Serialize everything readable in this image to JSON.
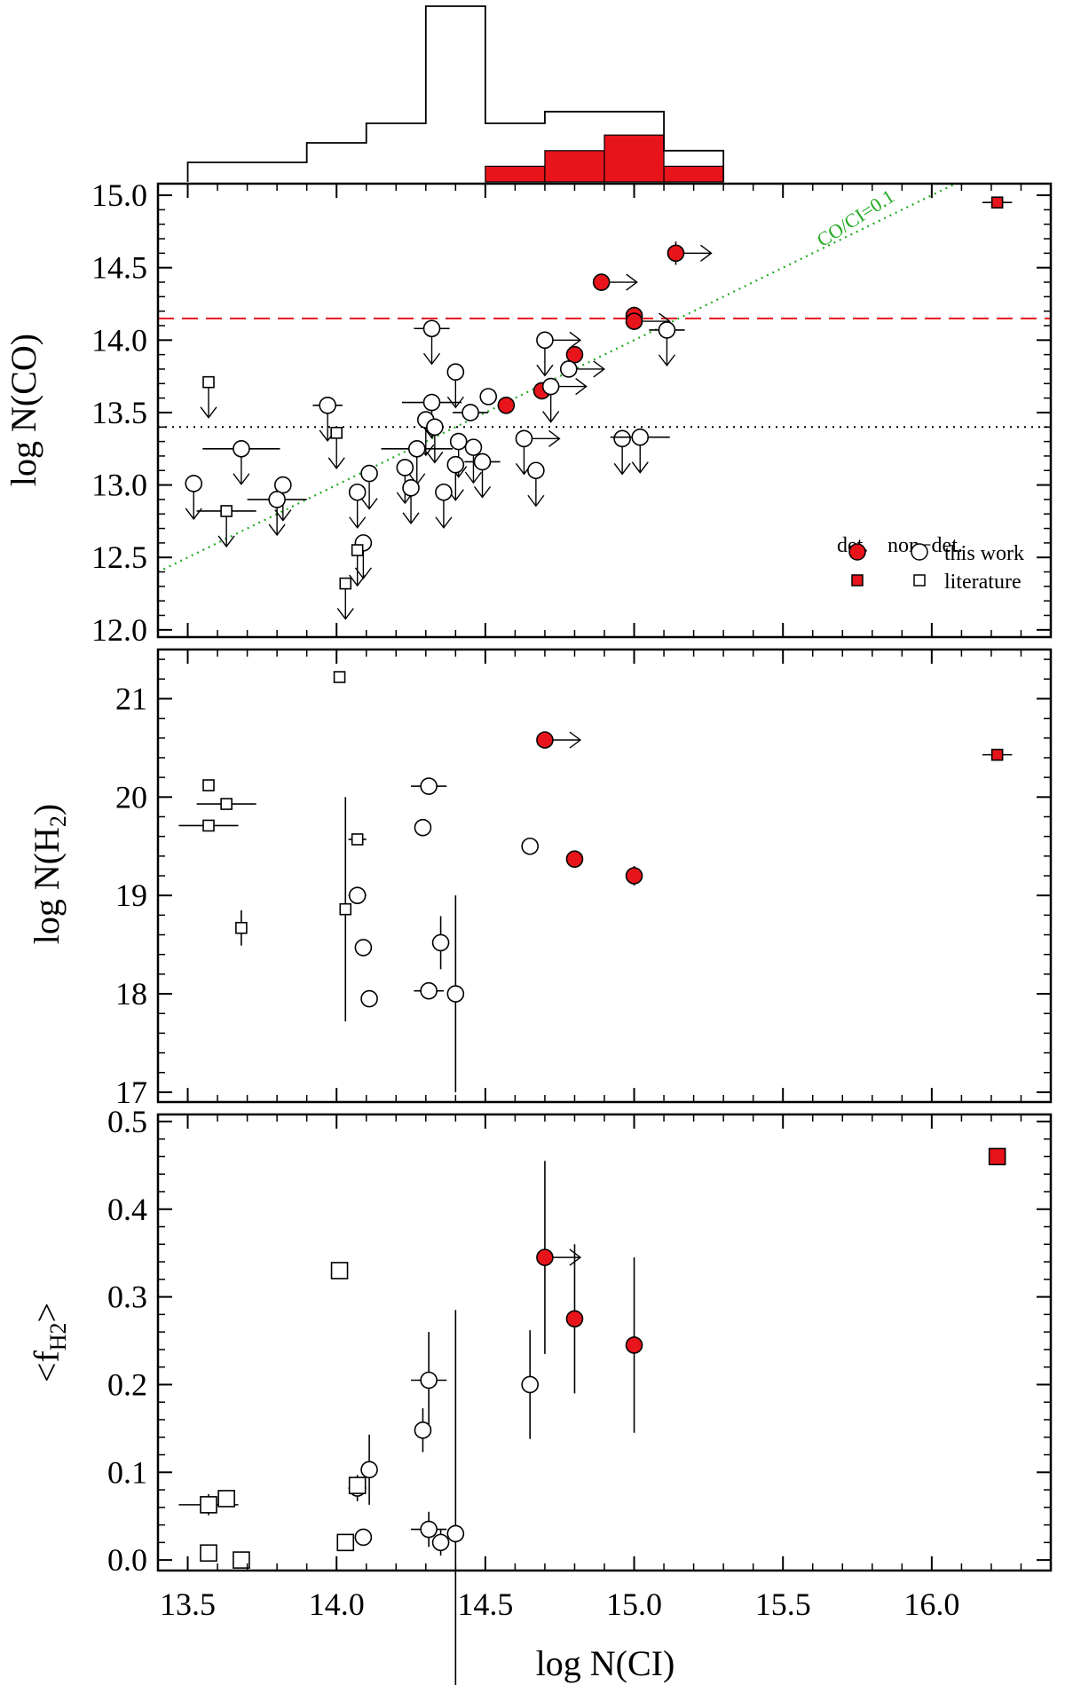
{
  "colors": {
    "detection": "#e8141b",
    "threshold_line": "#e8141b",
    "ratio_line": "#22aa22",
    "reference_line": "#000000"
  },
  "chart_data": [
    {
      "type": "histogram",
      "panel": "top-histogram",
      "xlim": [
        13.4,
        16.4
      ],
      "bins": [
        {
          "x0": 13.5,
          "x1": 13.7,
          "all": 1,
          "det": 0
        },
        {
          "x0": 13.7,
          "x1": 13.9,
          "all": 1,
          "det": 0
        },
        {
          "x0": 13.9,
          "x1": 14.1,
          "all": 2,
          "det": 0
        },
        {
          "x0": 14.1,
          "x1": 14.3,
          "all": 3,
          "det": 0
        },
        {
          "x0": 14.3,
          "x1": 14.5,
          "all": 9,
          "det": 0
        },
        {
          "x0": 14.5,
          "x1": 14.7,
          "all": 3,
          "det": 0.8
        },
        {
          "x0": 14.7,
          "x1": 14.9,
          "all": 3.6,
          "det": 1.6
        },
        {
          "x0": 14.9,
          "x1": 15.1,
          "all": 3.6,
          "det": 2.4
        },
        {
          "x0": 15.1,
          "x1": 15.3,
          "all": 1.6,
          "det": 0.8
        }
      ]
    },
    {
      "type": "scatter",
      "panel": "co",
      "ylabel": "log N(CO)",
      "xlim": [
        13.4,
        16.4
      ],
      "ylim": [
        11.95,
        15.08
      ],
      "yticks": [
        "12.0",
        "12.5",
        "13.0",
        "13.5",
        "14.0",
        "14.5",
        "15.0"
      ],
      "hlines": [
        {
          "y": 14.15,
          "style": "dashed",
          "color": "#e8141b"
        },
        {
          "y": 13.4,
          "style": "dotted",
          "color": "#000000"
        }
      ],
      "ratio_line": {
        "label": "CO/CI=0.1",
        "offset": -1.0
      },
      "legend": {
        "det_header": "det.",
        "nondet_header": "non−det.",
        "this_work": "this work",
        "literature": "literature"
      },
      "points": [
        {
          "x": 15.14,
          "y": 14.6,
          "m": "circle",
          "f": 1,
          "lx": 1,
          "ye": 0.08
        },
        {
          "x": 14.89,
          "y": 14.4,
          "m": "circle",
          "f": 1,
          "lx": 1
        },
        {
          "x": 15.0,
          "y": 14.17,
          "m": "circle",
          "f": 1,
          "ye": 0.06
        },
        {
          "x": 15.0,
          "y": 14.13,
          "m": "circle",
          "f": 1,
          "lx": 1
        },
        {
          "x": 14.8,
          "y": 13.9,
          "m": "circle",
          "f": 1
        },
        {
          "x": 14.69,
          "y": 13.65,
          "m": "circle",
          "f": 1
        },
        {
          "x": 14.57,
          "y": 13.55,
          "m": "circle",
          "f": 1
        },
        {
          "x": 16.22,
          "y": 14.95,
          "m": "square",
          "f": 1,
          "xe": 0.05
        },
        {
          "x": 14.32,
          "y": 14.08,
          "m": "circle",
          "f": 0,
          "ul": 1,
          "xe": 0.06
        },
        {
          "x": 15.11,
          "y": 14.07,
          "m": "circle",
          "f": 0,
          "ul": 1,
          "xe": 0.06
        },
        {
          "x": 14.7,
          "y": 14.0,
          "m": "circle",
          "f": 0,
          "ul": 1,
          "lx": 1
        },
        {
          "x": 14.78,
          "y": 13.8,
          "m": "circle",
          "f": 0,
          "lx": 1
        },
        {
          "x": 14.4,
          "y": 13.78,
          "m": "circle",
          "f": 0,
          "ul": 1
        },
        {
          "x": 14.72,
          "y": 13.68,
          "m": "circle",
          "f": 0,
          "ul": 1,
          "lx": 1
        },
        {
          "x": 14.51,
          "y": 13.61,
          "m": "circle",
          "f": 0
        },
        {
          "x": 14.32,
          "y": 13.57,
          "m": "circle",
          "f": 0,
          "ul": 1,
          "xe": 0.1
        },
        {
          "x": 13.97,
          "y": 13.55,
          "m": "circle",
          "f": 0,
          "ul": 1,
          "xe": 0.05
        },
        {
          "x": 14.45,
          "y": 13.5,
          "m": "circle",
          "f": 0,
          "xe": 0.06
        },
        {
          "x": 14.3,
          "y": 13.45,
          "m": "circle",
          "f": 0,
          "ul": 1
        },
        {
          "x": 14.33,
          "y": 13.4,
          "m": "circle",
          "f": 0,
          "ul": 1
        },
        {
          "x": 14.63,
          "y": 13.32,
          "m": "circle",
          "f": 0,
          "ul": 1,
          "lx": 1
        },
        {
          "x": 14.41,
          "y": 13.3,
          "m": "circle",
          "f": 0,
          "ul": 1
        },
        {
          "x": 14.96,
          "y": 13.32,
          "m": "circle",
          "f": 0,
          "ul": 1
        },
        {
          "x": 15.02,
          "y": 13.33,
          "m": "circle",
          "f": 0,
          "ul": 1,
          "xe": 0.1
        },
        {
          "x": 14.46,
          "y": 13.26,
          "m": "circle",
          "f": 0,
          "ul": 1
        },
        {
          "x": 14.27,
          "y": 13.25,
          "m": "circle",
          "f": 0,
          "ul": 1,
          "xe": 0.12
        },
        {
          "x": 13.68,
          "y": 13.25,
          "m": "circle",
          "f": 0,
          "ul": 1,
          "xe": 0.13
        },
        {
          "x": 14.49,
          "y": 13.16,
          "m": "circle",
          "f": 0,
          "ul": 1,
          "xe": 0.06
        },
        {
          "x": 14.4,
          "y": 13.14,
          "m": "circle",
          "f": 0,
          "ul": 1
        },
        {
          "x": 14.23,
          "y": 13.12,
          "m": "circle",
          "f": 0,
          "ul": 1
        },
        {
          "x": 14.11,
          "y": 13.08,
          "m": "circle",
          "f": 0,
          "ul": 1
        },
        {
          "x": 14.67,
          "y": 13.1,
          "m": "circle",
          "f": 0,
          "ul": 1
        },
        {
          "x": 13.52,
          "y": 13.01,
          "m": "circle",
          "f": 0,
          "ul": 1
        },
        {
          "x": 13.82,
          "y": 13.0,
          "m": "circle",
          "f": 0,
          "ul": 1
        },
        {
          "x": 14.25,
          "y": 12.98,
          "m": "circle",
          "f": 0,
          "ul": 1
        },
        {
          "x": 14.07,
          "y": 12.95,
          "m": "circle",
          "f": 0,
          "ul": 1
        },
        {
          "x": 14.36,
          "y": 12.95,
          "m": "circle",
          "f": 0,
          "ul": 1
        },
        {
          "x": 13.8,
          "y": 12.9,
          "m": "circle",
          "f": 0,
          "ul": 1,
          "xe": 0.1
        },
        {
          "x": 14.09,
          "y": 12.6,
          "m": "circle",
          "f": 0,
          "ul": 1
        },
        {
          "x": 13.57,
          "y": 13.71,
          "m": "square",
          "f": 0,
          "ul": 1
        },
        {
          "x": 14.0,
          "y": 13.36,
          "m": "square",
          "f": 0,
          "ul": 1
        },
        {
          "x": 13.63,
          "y": 12.82,
          "m": "square",
          "f": 0,
          "ul": 1,
          "xe": 0.1
        },
        {
          "x": 14.07,
          "y": 12.55,
          "m": "square",
          "f": 0,
          "ul": 1
        },
        {
          "x": 14.03,
          "y": 12.32,
          "m": "square",
          "f": 0,
          "ul": 1
        }
      ]
    },
    {
      "type": "scatter",
      "panel": "h2",
      "ylabel": "log N(H",
      "ylabel_sub": "2",
      "ylabel_end": ")",
      "xlim": [
        13.4,
        16.4
      ],
      "ylim": [
        16.9,
        21.5
      ],
      "yticks": [
        "17",
        "18",
        "19",
        "20",
        "21"
      ],
      "points": [
        {
          "x": 14.7,
          "y": 20.58,
          "m": "circle",
          "f": 1,
          "lx": 1
        },
        {
          "x": 14.8,
          "y": 19.37,
          "m": "circle",
          "f": 1
        },
        {
          "x": 15.0,
          "y": 19.2,
          "m": "circle",
          "f": 1,
          "ye": 0.1
        },
        {
          "x": 16.22,
          "y": 20.43,
          "m": "square",
          "f": 1,
          "xe": 0.05
        },
        {
          "x": 14.31,
          "y": 20.11,
          "m": "circle",
          "f": 0,
          "xe": 0.06
        },
        {
          "x": 14.29,
          "y": 19.69,
          "m": "circle",
          "f": 0
        },
        {
          "x": 14.65,
          "y": 19.5,
          "m": "circle",
          "f": 0
        },
        {
          "x": 14.07,
          "y": 19.0,
          "m": "circle",
          "f": 0,
          "xe": 0.03
        },
        {
          "x": 14.35,
          "y": 18.52,
          "m": "circle",
          "f": 0,
          "ye": 0.27
        },
        {
          "x": 14.09,
          "y": 18.47,
          "m": "circle",
          "f": 0
        },
        {
          "x": 14.31,
          "y": 18.03,
          "m": "circle",
          "f": 0,
          "xe": 0.05
        },
        {
          "x": 14.4,
          "y": 18.0,
          "m": "circle",
          "f": 0,
          "ye": 1.0
        },
        {
          "x": 14.11,
          "y": 17.95,
          "m": "circle",
          "f": 0
        },
        {
          "x": 14.01,
          "y": 21.22,
          "m": "square",
          "f": 0
        },
        {
          "x": 13.57,
          "y": 20.12,
          "m": "square",
          "f": 0
        },
        {
          "x": 13.63,
          "y": 19.93,
          "m": "square",
          "f": 0,
          "xe": 0.1
        },
        {
          "x": 13.57,
          "y": 19.71,
          "m": "square",
          "f": 0,
          "xe": 0.1
        },
        {
          "x": 14.07,
          "y": 19.57,
          "m": "square",
          "f": 0,
          "xe": 0.03
        },
        {
          "x": 14.03,
          "y": 18.86,
          "m": "square",
          "f": 0,
          "ye": 1.14
        },
        {
          "x": 13.68,
          "y": 18.67,
          "m": "square",
          "f": 0,
          "ye": 0.18
        }
      ]
    },
    {
      "type": "scatter",
      "panel": "fh2",
      "ylabel": "<f",
      "ylabel_sub": "H2",
      "ylabel_end": ">",
      "xlabel": "log N(CI)",
      "xlim": [
        13.4,
        16.4
      ],
      "xticks": [
        "13.5",
        "14.0",
        "14.5",
        "15.0",
        "15.5",
        "16.0"
      ],
      "ylim": [
        -0.012,
        0.508
      ],
      "yticks": [
        "0.0",
        "0.1",
        "0.2",
        "0.3",
        "0.4",
        "0.5"
      ],
      "points": [
        {
          "x": 14.7,
          "y": 0.345,
          "m": "circle",
          "f": 1,
          "lx": 1,
          "ye": 0.11
        },
        {
          "x": 14.8,
          "y": 0.275,
          "m": "circle",
          "f": 1,
          "ye": 0.085
        },
        {
          "x": 15.0,
          "y": 0.245,
          "m": "circle",
          "f": 1,
          "ye": 0.1
        },
        {
          "x": 16.22,
          "y": 0.46,
          "m": "square",
          "f": 1
        },
        {
          "x": 14.31,
          "y": 0.205,
          "m": "circle",
          "f": 0,
          "xe": 0.06,
          "ye": 0.055
        },
        {
          "x": 14.65,
          "y": 0.2,
          "m": "circle",
          "f": 0,
          "ye": 0.062
        },
        {
          "x": 14.29,
          "y": 0.148,
          "m": "circle",
          "f": 0,
          "ye": 0.025
        },
        {
          "x": 14.11,
          "y": 0.103,
          "m": "circle",
          "f": 0,
          "ye": 0.04
        },
        {
          "x": 14.07,
          "y": 0.082,
          "m": "circle",
          "f": 0,
          "xe": 0.03,
          "ye": 0.015
        },
        {
          "x": 14.31,
          "y": 0.035,
          "m": "circle",
          "f": 0,
          "xe": 0.06,
          "ye": 0.02
        },
        {
          "x": 14.4,
          "y": 0.03,
          "m": "circle",
          "f": 0,
          "ye": 0.255
        },
        {
          "x": 14.09,
          "y": 0.026,
          "m": "circle",
          "f": 0
        },
        {
          "x": 14.35,
          "y": 0.02,
          "m": "circle",
          "f": 0,
          "ye": 0.015
        },
        {
          "x": 14.01,
          "y": 0.33,
          "m": "square",
          "f": 0
        },
        {
          "x": 13.57,
          "y": 0.063,
          "m": "square",
          "f": 0,
          "xe": 0.1,
          "ye": 0.012
        },
        {
          "x": 13.63,
          "y": 0.07,
          "m": "square",
          "f": 0
        },
        {
          "x": 14.07,
          "y": 0.085,
          "m": "square",
          "f": 0
        },
        {
          "x": 14.03,
          "y": 0.02,
          "m": "square",
          "f": 0
        },
        {
          "x": 13.57,
          "y": 0.008,
          "m": "square",
          "f": 0
        },
        {
          "x": 13.68,
          "y": 0.0,
          "m": "square",
          "f": 0
        }
      ]
    }
  ]
}
